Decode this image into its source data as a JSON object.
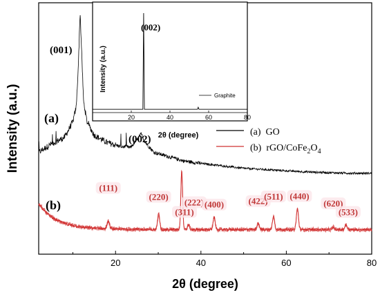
{
  "chart_data": [
    {
      "type": "line",
      "xlabel": "2θ (degree)",
      "ylabel": "Intensity (a.u.)",
      "xlim": [
        2,
        80
      ],
      "x_ticks": [
        "20",
        "40",
        "60",
        "80"
      ],
      "x_tick_values": [
        20,
        40,
        60,
        80
      ],
      "y_ticks_shown": false,
      "series": [
        {
          "name": "(a)  GO",
          "tag": "(a)",
          "color": "#000000",
          "points": [
            [
              2,
              0.83
            ],
            [
              5,
              0.9
            ],
            [
              8,
              0.95
            ],
            [
              10,
              1.08
            ],
            [
              10.8,
              1.2
            ],
            [
              11.3,
              1.55
            ],
            [
              11.7,
              1.98
            ],
            [
              12.0,
              1.7
            ],
            [
              12.5,
              1.25
            ],
            [
              13.3,
              1.08
            ],
            [
              15,
              0.97
            ],
            [
              18,
              0.91
            ],
            [
              21,
              0.88
            ],
            [
              23.5,
              0.87
            ],
            [
              25.2,
              0.94
            ],
            [
              26.0,
              0.98
            ],
            [
              27,
              0.91
            ],
            [
              29,
              0.83
            ],
            [
              32,
              0.8
            ],
            [
              36,
              0.76
            ],
            [
              40,
              0.74
            ],
            [
              45,
              0.72
            ],
            [
              50,
              0.7
            ],
            [
              55,
              0.69
            ],
            [
              60,
              0.68
            ],
            [
              65,
              0.67
            ],
            [
              70,
              0.665
            ],
            [
              75,
              0.66
            ],
            [
              80,
              0.66
            ]
          ]
        },
        {
          "name": "(b)  rGO/CoFe₂O₄",
          "legend_main": "(b)  rGO/CoFe",
          "legend_sub1": "2",
          "legend_mid": "O",
          "legend_sub2": "4",
          "tag": "(b)",
          "color": "#d03030",
          "baseline": [
            [
              2,
              0.41
            ],
            [
              4,
              0.33
            ],
            [
              6,
              0.28
            ],
            [
              9,
              0.24
            ],
            [
              12,
              0.22
            ],
            [
              16,
              0.21
            ],
            [
              20,
              0.205
            ],
            [
              30,
              0.2
            ],
            [
              40,
              0.2
            ],
            [
              50,
              0.2
            ],
            [
              60,
              0.2
            ],
            [
              70,
              0.2
            ],
            [
              80,
              0.2
            ]
          ],
          "peaks": [
            {
              "x": 18.3,
              "h": 0.06,
              "w": 0.4
            },
            {
              "x": 30.1,
              "h": 0.13,
              "w": 0.35
            },
            {
              "x": 35.5,
              "h": 0.48,
              "w": 0.3
            },
            {
              "x": 37.1,
              "h": 0.04,
              "w": 0.35
            },
            {
              "x": 43.1,
              "h": 0.1,
              "w": 0.35
            },
            {
              "x": 53.4,
              "h": 0.05,
              "w": 0.4
            },
            {
              "x": 57.0,
              "h": 0.11,
              "w": 0.35
            },
            {
              "x": 62.6,
              "h": 0.17,
              "w": 0.35
            },
            {
              "x": 71.0,
              "h": 0.02,
              "w": 0.4
            },
            {
              "x": 74.0,
              "h": 0.04,
              "w": 0.4
            }
          ]
        }
      ],
      "annotations": {
        "go_001": "(001)",
        "go_002": "(002)",
        "tag_a": "(a)",
        "tag_b": "(b)",
        "peaks": [
          {
            "label": "(111)",
            "x": 18.3
          },
          {
            "label": "(220)",
            "x": 30.1
          },
          {
            "label": "(311)",
            "x": 35.5
          },
          {
            "label": "(222)",
            "x": 37.1
          },
          {
            "label": "(400)",
            "x": 43.1
          },
          {
            "label": "(422)",
            "x": 53.4
          },
          {
            "label": "(511)",
            "x": 57.0
          },
          {
            "label": "(440)",
            "x": 62.6
          },
          {
            "label": "(620)",
            "x": 71.0
          },
          {
            "label": "(533)",
            "x": 74.0
          }
        ]
      },
      "legend_position": "right"
    },
    {
      "type": "line",
      "role": "inset",
      "xlabel": "2θ (degree)",
      "ylabel": "Intensity (a.u.)",
      "xlim": [
        0,
        80
      ],
      "x_ticks": [
        "20",
        "40",
        "60",
        "80"
      ],
      "x_tick_values": [
        20,
        40,
        60,
        80
      ],
      "series": [
        {
          "name": "Graphite",
          "color": "#000000",
          "points": [
            [
              0,
              0.02
            ],
            [
              26.0,
              0.02
            ],
            [
              26.4,
              1.0
            ],
            [
              26.8,
              0.02
            ],
            [
              54.2,
              0.02
            ],
            [
              54.6,
              0.04
            ],
            [
              55.0,
              0.02
            ],
            [
              80,
              0.02
            ]
          ]
        }
      ],
      "annotation": "(002)"
    }
  ]
}
